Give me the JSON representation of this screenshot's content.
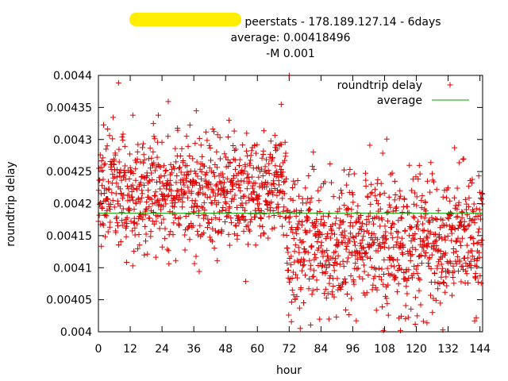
{
  "chart_data": {
    "type": "scatter",
    "title_lines": [
      "peerstats - 178.189.127.14 - 6days",
      "average: 0.00418496",
      "-M 0.001"
    ],
    "xlabel": "hour",
    "ylabel": "roundtrip delay",
    "xlim": [
      0,
      145
    ],
    "ylim": [
      0.004,
      0.0044
    ],
    "x_ticks": [
      0,
      12,
      24,
      36,
      48,
      60,
      72,
      84,
      96,
      108,
      120,
      132,
      144
    ],
    "y_ticks": [
      0.004,
      0.00405,
      0.0041,
      0.00415,
      0.0042,
      0.00425,
      0.0043,
      0.00435,
      0.0044
    ],
    "grid": false,
    "legend_position": "top-right",
    "series": [
      {
        "name": "roundtrip delay",
        "marker": "plus",
        "color": "#e00000",
        "point_count": 1700,
        "note_points": "generated",
        "regimes": [
          {
            "from_hour": 0,
            "to_hour": 71,
            "center": 0.00422,
            "spread": 6e-05
          },
          {
            "from_hour": 71,
            "to_hour": 145,
            "center": 0.00414,
            "spread": 7e-05
          }
        ],
        "notable_points": [
          {
            "x": 72,
            "y": 0.0044
          },
          {
            "x": 69,
            "y": 0.004355
          },
          {
            "x": 13,
            "y": 0.004338
          },
          {
            "x": 130,
            "y": 0.004003
          },
          {
            "x": 124,
            "y": 0.004014
          },
          {
            "x": 142,
            "y": 0.004017
          },
          {
            "x": 114,
            "y": 0.004002
          }
        ]
      },
      {
        "name": "average",
        "type": "hline",
        "color": "#00a000",
        "value": 0.00418496
      }
    ]
  }
}
